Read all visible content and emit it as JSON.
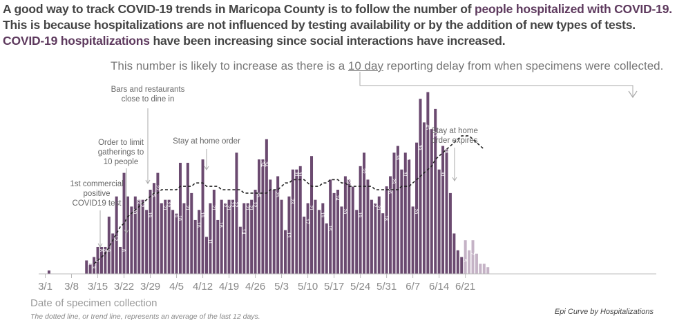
{
  "intro": {
    "part1": "A good way to track COVID-19 trends in Maricopa County is to follow the number of ",
    "hl1": "people hospitalized with COVID-19.",
    "part2": " This is because hospitalizations are not influenced by testing availability or by the addition of new types of tests. ",
    "hl2": "COVID-19 hospitalizations",
    "part3": " have been increasing since social interactions have increased."
  },
  "delay_note": {
    "pre": "This number is likely to increase as there is a ",
    "highlight": "10 day",
    "post": " reporting delay from when specimens were collected."
  },
  "annotations": {
    "commercial_test": [
      "1st commercial",
      "positive",
      "COVID19 test"
    ],
    "limit_gatherings": [
      "Order to limit",
      "gatherings to",
      "10 people"
    ],
    "bars_restaurants": [
      "Bars and restaurants",
      "close to dine in"
    ],
    "stay_home": [
      "Stay at home order"
    ],
    "stay_home_expires": [
      "Stay at home",
      "order expires"
    ]
  },
  "footer": {
    "x_axis_title": "Date of specimen collection",
    "trend_note": "The dotted line, or trend line, represents an average of the last 12 days.",
    "epi_label": "Epi Curve by Hospitalizations"
  },
  "colors": {
    "bar": "#6b4a70",
    "bar_delayed": "#c5b3c6",
    "axis": "#bbbbbb",
    "tick_text": "#888888",
    "annotation_text": "#666666"
  },
  "chart_data": {
    "type": "bar",
    "title": "Epi Curve by Hospitalizations",
    "xlabel": "Date of specimen collection",
    "ylabel": "",
    "start_date": "3/1",
    "x_tick_labels": [
      "3/1",
      "3/8",
      "3/15",
      "3/22",
      "3/29",
      "4/5",
      "4/12",
      "4/19",
      "4/26",
      "5/3",
      "5/10",
      "5/17",
      "5/24",
      "5/31",
      "6/7",
      "6/14",
      "6/21"
    ],
    "ylim": [
      0,
      58
    ],
    "series": [
      {
        "name": "Hospitalizations",
        "values": [
          0,
          1,
          0,
          0,
          0,
          0,
          0,
          0,
          0,
          0,
          0,
          4,
          3,
          5,
          8,
          8,
          8,
          17,
          12,
          23,
          8,
          30,
          23,
          20,
          23,
          22,
          22,
          19,
          25,
          27,
          30,
          21,
          22,
          22,
          19,
          18,
          33,
          21,
          33,
          24,
          16,
          19,
          34,
          11,
          21,
          25,
          16,
          22,
          21,
          22,
          22,
          36,
          14,
          21,
          21,
          22,
          25,
          34,
          34,
          40,
          28,
          25,
          29,
          22,
          13,
          23,
          31,
          31,
          32,
          17,
          21,
          35,
          22,
          19,
          21,
          15,
          28,
          24,
          25,
          20,
          29,
          28,
          26,
          19,
          32,
          36,
          28,
          22,
          21,
          23,
          18,
          26,
          29,
          36,
          38,
          31,
          36,
          34,
          20,
          39,
          52,
          45,
          54,
          43,
          49,
          31,
          38,
          37,
          24,
          12,
          7,
          5
        ],
        "labels": [
          null,
          null,
          null,
          null,
          null,
          null,
          null,
          null,
          null,
          null,
          null,
          "4",
          "3",
          "5",
          "8",
          "8",
          "8",
          "17",
          "12",
          "23",
          "8",
          "30",
          "23",
          "20",
          "23",
          "22",
          "22",
          "19",
          "25",
          "27",
          "30",
          "21",
          "22",
          "22",
          "19",
          "18",
          "33",
          "21",
          "33",
          "24",
          "16",
          "19",
          "34",
          "11",
          "21",
          "25",
          "16",
          "22",
          "21",
          "22",
          "22",
          "36",
          "14",
          "21",
          "21",
          "22",
          "25",
          "34",
          "34",
          "40",
          "28",
          "25",
          "29",
          "22",
          "13",
          "23",
          "31",
          "31",
          "32",
          "17",
          "21",
          "35",
          "22",
          "19",
          "21",
          "15",
          "28",
          "24",
          "25",
          "20",
          "29",
          "28",
          "26",
          "19",
          "32",
          "36",
          "28",
          "22",
          "21",
          "23",
          "18",
          "26",
          "29",
          "36",
          "38",
          "31",
          "36",
          "34",
          "20",
          "39",
          "52",
          "45",
          "54",
          "43",
          "49",
          "31",
          "38",
          "37",
          "24",
          "12",
          "7",
          "5"
        ]
      },
      {
        "name": "Reporting delay (last days)",
        "start_index": 112,
        "values": [
          10,
          7,
          10,
          6,
          3,
          3,
          2
        ],
        "labels": [
          "10",
          "7",
          "10",
          "6",
          null,
          null,
          null
        ]
      }
    ],
    "trend": {
      "name": "12-day average",
      "start_index": 13,
      "values": [
        3,
        4,
        5,
        6,
        8,
        10,
        12,
        14,
        15,
        17,
        18,
        19,
        20,
        21,
        22,
        23,
        24,
        24,
        25,
        25,
        25,
        25,
        25,
        26,
        26,
        26,
        26,
        27,
        27,
        27,
        26,
        26,
        26,
        26,
        25,
        25,
        25,
        25,
        25,
        25,
        24,
        24,
        24,
        24,
        24,
        24,
        24,
        25,
        25,
        25,
        26,
        27,
        27,
        28,
        28,
        28,
        28,
        27,
        26,
        26,
        26,
        27,
        27,
        28,
        28,
        28,
        27,
        27,
        26,
        26,
        26,
        26,
        26,
        26,
        26,
        25,
        25,
        25,
        25,
        25,
        25,
        25,
        26,
        26,
        26,
        27,
        28,
        29,
        30,
        31,
        32,
        34,
        35,
        36,
        37,
        38,
        39,
        40,
        41,
        41,
        41,
        40,
        39,
        38,
        37
      ]
    }
  }
}
